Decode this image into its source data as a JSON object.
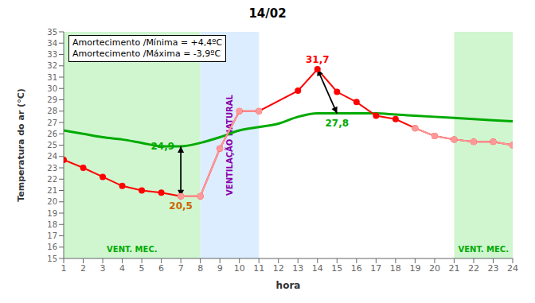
{
  "chart_data": {
    "type": "line",
    "title": "14/02",
    "xlabel": "hora",
    "ylabel": "Temperatura do ar (°C)",
    "xlim": [
      1,
      24
    ],
    "ylim": [
      15,
      35
    ],
    "xticks": [
      1,
      2,
      3,
      4,
      5,
      6,
      7,
      8,
      9,
      10,
      11,
      12,
      13,
      14,
      15,
      16,
      17,
      18,
      19,
      20,
      21,
      22,
      23,
      24
    ],
    "yticks": [
      15,
      16,
      17,
      18,
      19,
      20,
      21,
      22,
      23,
      24,
      25,
      26,
      27,
      28,
      29,
      30,
      31,
      32,
      33,
      34,
      35
    ],
    "grid": true,
    "series": [
      {
        "color": "#00AA00",
        "marker": "none",
        "x": [
          1,
          2,
          3,
          4,
          5,
          6,
          7,
          8,
          9,
          10,
          11,
          12,
          13,
          14,
          15,
          16,
          17,
          18,
          19,
          20,
          21,
          22,
          23,
          24
        ],
        "values": [
          26.3,
          26.0,
          25.7,
          25.5,
          25.2,
          24.9,
          24.9,
          25.2,
          25.7,
          26.3,
          26.6,
          26.9,
          27.5,
          27.8,
          27.8,
          27.8,
          27.8,
          27.7,
          27.6,
          27.5,
          27.4,
          27.3,
          27.2,
          27.1
        ]
      },
      {
        "color": "#FF0000",
        "marker": "circle",
        "x": [
          1,
          2,
          3,
          4,
          5,
          6,
          7,
          8,
          9,
          10,
          11,
          13,
          14,
          15,
          16,
          17,
          18,
          19,
          20,
          21,
          22,
          23,
          24
        ],
        "values": [
          23.7,
          23.0,
          22.2,
          21.4,
          21.0,
          20.8,
          20.5,
          20.5,
          24.7,
          28.0,
          28.0,
          29.8,
          31.7,
          29.7,
          28.8,
          27.6,
          27.3,
          26.5,
          25.8,
          25.5,
          25.3,
          25.3,
          25.0
        ]
      },
      {
        "color": "#FF9999",
        "marker": "circle",
        "x": [
          7,
          8,
          9,
          10,
          11
        ],
        "values": [
          20.5,
          20.5,
          24.7,
          28.0,
          28.0
        ]
      },
      {
        "color": "#FF9999",
        "marker": "circle",
        "x": [
          19,
          20,
          21,
          22,
          23,
          24
        ],
        "values": [
          26.5,
          25.8,
          25.5,
          25.3,
          25.3,
          25.0
        ]
      }
    ],
    "spans": [
      {
        "x": [
          1,
          8
        ],
        "color": "#C8F5C8",
        "label": "VENT. MEC.",
        "label_color": "#00AA00"
      },
      {
        "x": [
          8,
          11
        ],
        "color": "#D6EAFF",
        "label": "VENTILAÇÃO NATURAL",
        "label_color": "#8800AA"
      },
      {
        "x": [
          21,
          24
        ],
        "color": "#C8F5C8",
        "label": "VENT. MEC.",
        "label_color": "#00AA00"
      }
    ],
    "annotations": [
      {
        "text": "20,5",
        "x": 7,
        "y": 20.5,
        "color": "#CC6600"
      },
      {
        "text": "24,9",
        "x": 7,
        "y": 24.9,
        "color": "#00AA00"
      },
      {
        "text": "31,7",
        "x": 14,
        "y": 31.7,
        "color": "#FF0000"
      },
      {
        "text": "27,8",
        "x": 15,
        "y": 27.8,
        "color": "#00AA00"
      }
    ],
    "arrows": [
      {
        "x": [
          7,
          7
        ],
        "y": [
          20.5,
          24.9
        ]
      },
      {
        "x": [
          14,
          15
        ],
        "y": [
          31.7,
          27.8
        ]
      }
    ],
    "note": [
      "Amortecimento /Mínima = +4,4ºC",
      "Amortecimento /Máxima = -3,9ºC"
    ]
  }
}
